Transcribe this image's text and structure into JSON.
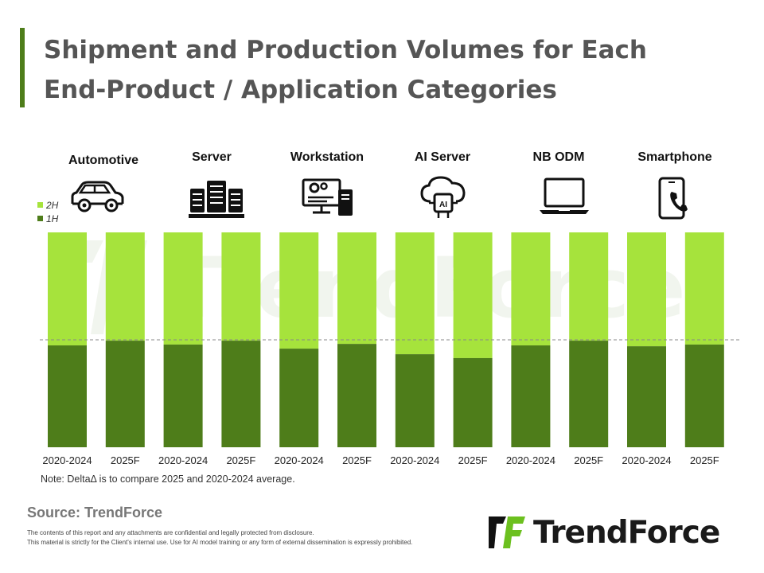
{
  "title_line1": "Shipment and Production Volumes for Each",
  "title_line2": "End-Product / Application Categories",
  "categories": [
    {
      "label": "Automotive",
      "icon": "car-icon"
    },
    {
      "label": "Server",
      "icon": "server-rack-icon"
    },
    {
      "label": "Workstation",
      "icon": "workstation-icon"
    },
    {
      "label": "AI Server",
      "icon": "ai-cloud-icon"
    },
    {
      "label": "NB ODM",
      "icon": "laptop-icon"
    },
    {
      "label": "Smartphone",
      "icon": "smartphone-icon"
    }
  ],
  "legend": {
    "h2": "2H",
    "h1": "1H"
  },
  "note": "Note: DeltaΔ is to compare 2025 and 2020-2024 average.",
  "source": "Source: TrendForce",
  "disclaimer_line1": "The contents of this report and any attachments are confidential and legally protected from disclosure.",
  "disclaimer_line2": "This material is strictly for the Client's internal use. Use for AI model training or any form of external dissemination is expressly prohibited.",
  "brand_name": "TrendForce",
  "watermark": "TrendForce",
  "colors": {
    "h1": "#4e7d1a",
    "h2": "#a6e33c",
    "accent": "#4e7d1a"
  },
  "chart_data": {
    "type": "bar",
    "stacked": true,
    "percent": true,
    "categories": [
      "2020-2024",
      "2025F",
      "2020-2024",
      "2025F",
      "2020-2024",
      "2025F",
      "2020-2024",
      "2025F",
      "2020-2024",
      "2025F",
      "2020-2024",
      "2025F"
    ],
    "groups": [
      "Automotive",
      "Server",
      "Workstation",
      "AI Server",
      "NB ODM",
      "Smartphone"
    ],
    "series": [
      {
        "name": "1H",
        "values": [
          47.4,
          49.6,
          47.8,
          49.6,
          45.9,
          48.1,
          43.3,
          41.5,
          47.4,
          49.6,
          47.0,
          47.8
        ]
      },
      {
        "name": "2H",
        "values": [
          52.6,
          50.4,
          52.2,
          50.4,
          54.1,
          51.9,
          56.7,
          58.5,
          52.6,
          50.4,
          53.0,
          52.2
        ]
      }
    ],
    "ylim": [
      0,
      100
    ],
    "reference_line": 50,
    "legend_position": "top-left",
    "grid": false
  }
}
